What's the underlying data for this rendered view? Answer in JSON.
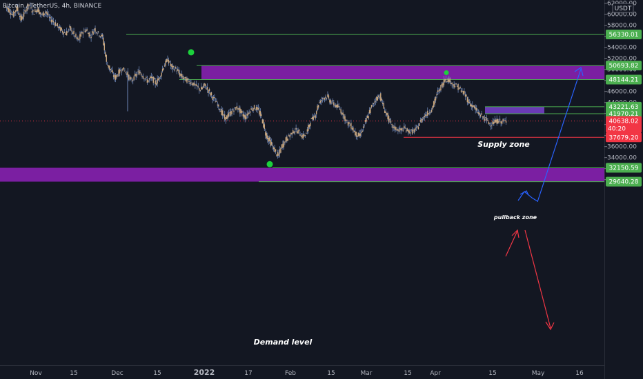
{
  "symbol_title": "Bitcoin / TetherUS, 4h, BINANCE",
  "currency": "USDT",
  "colors": {
    "background": "#131722",
    "candle": "#c9a77f",
    "wick": "#6e86b5",
    "zone": "#7b1fa2",
    "support_line": "#4caf50",
    "red_line": "#f23645",
    "blue_arrow": "#2962ff",
    "red_arrow": "#f23645",
    "green_dot": "#1cd13c",
    "current_price_bg": "#f23645",
    "level_label_bg": "#4caf50"
  },
  "chart_data": {
    "type": "line",
    "title": "",
    "ylabel": "",
    "ylim": [
      28800,
      62400
    ],
    "y_ticks": [
      62000,
      60000,
      58000,
      56000,
      54000,
      52000,
      50000,
      48000,
      46000,
      44000,
      42000,
      40000,
      38000,
      36000,
      34000,
      32000,
      30000
    ],
    "y_tick_labels": [
      "62000.00",
      "60000.00",
      "58000.00",
      "56000.00",
      "54000.00",
      "52000.00",
      "50000.00",
      "48000.00",
      "46000.00",
      "44000.00",
      "42000.00",
      "40000.00",
      "38000.00",
      "36000.00",
      "34000.00",
      "32000.00",
      "30000.00"
    ],
    "x_ticks": [
      "Nov",
      "15",
      "Dec",
      "15",
      "2022",
      "17",
      "Feb",
      "15",
      "Mar",
      "15",
      "Apr",
      "15",
      "May",
      "16"
    ],
    "series": [
      {
        "values": [
          61500,
          60800,
          59800,
          61200,
          59000,
          60500,
          61800,
          60200,
          61000,
          59800,
          60500,
          59200,
          58600,
          57800,
          57000,
          56500,
          57500,
          56300,
          55200,
          56800,
          57200,
          56000,
          57400,
          56500,
          55800,
          51200,
          49800,
          48400,
          49500,
          50200,
          49200,
          47800,
          48800,
          49600,
          48700,
          47900,
          48500,
          47500,
          48600,
          50600,
          51800,
          50300,
          50100,
          49000,
          48300,
          47900,
          47500,
          46900,
          46300,
          47100,
          46100,
          44900,
          43900,
          42500,
          41000,
          41800,
          42600,
          43200,
          42100,
          41300,
          42400,
          43100,
          42800,
          41300,
          38300,
          36900,
          35600,
          34200,
          36100,
          37300,
          38100,
          39000,
          38700,
          37800,
          38400,
          40700,
          41500,
          43800,
          44800,
          45100,
          44100,
          43500,
          43000,
          41800,
          40300,
          39700,
          38300,
          37900,
          39600,
          41400,
          43300,
          44600,
          45300,
          42900,
          41200,
          39600,
          39200,
          38900,
          39300,
          38800,
          38700,
          39200,
          40600,
          41700,
          42200,
          43200,
          45600,
          46800,
          48300,
          48000,
          47200,
          46900,
          46100,
          45200,
          43800,
          43200,
          42100,
          41500,
          40900,
          40100,
          40400,
          40700,
          40500,
          40600
        ]
      }
    ],
    "levels": [
      {
        "value": 56330.01,
        "label": "56330.01",
        "type": "resistance"
      },
      {
        "value": 50693.82,
        "label": "50693.82",
        "type": "zone-top"
      },
      {
        "value": 48144.21,
        "label": "48144.21",
        "type": "zone-bottom"
      },
      {
        "value": 43221.63,
        "label": "43221.63",
        "type": "pullback-top"
      },
      {
        "value": 41970.21,
        "label": "41970.21",
        "type": "pullback-bottom"
      },
      {
        "value": 37679.2,
        "label": "37679.20",
        "type": "support-red"
      },
      {
        "value": 32150.59,
        "label": "32150.59",
        "type": "demand-top"
      },
      {
        "value": 29640.28,
        "label": "29640.28",
        "type": "demand-bottom"
      }
    ],
    "current_price": {
      "value": 40638.02,
      "label": "40638.02",
      "countdown": "40:20"
    },
    "annotations": {
      "supply": "Supply zone",
      "pullback": "pullback zone",
      "demand": "Demand level"
    }
  }
}
